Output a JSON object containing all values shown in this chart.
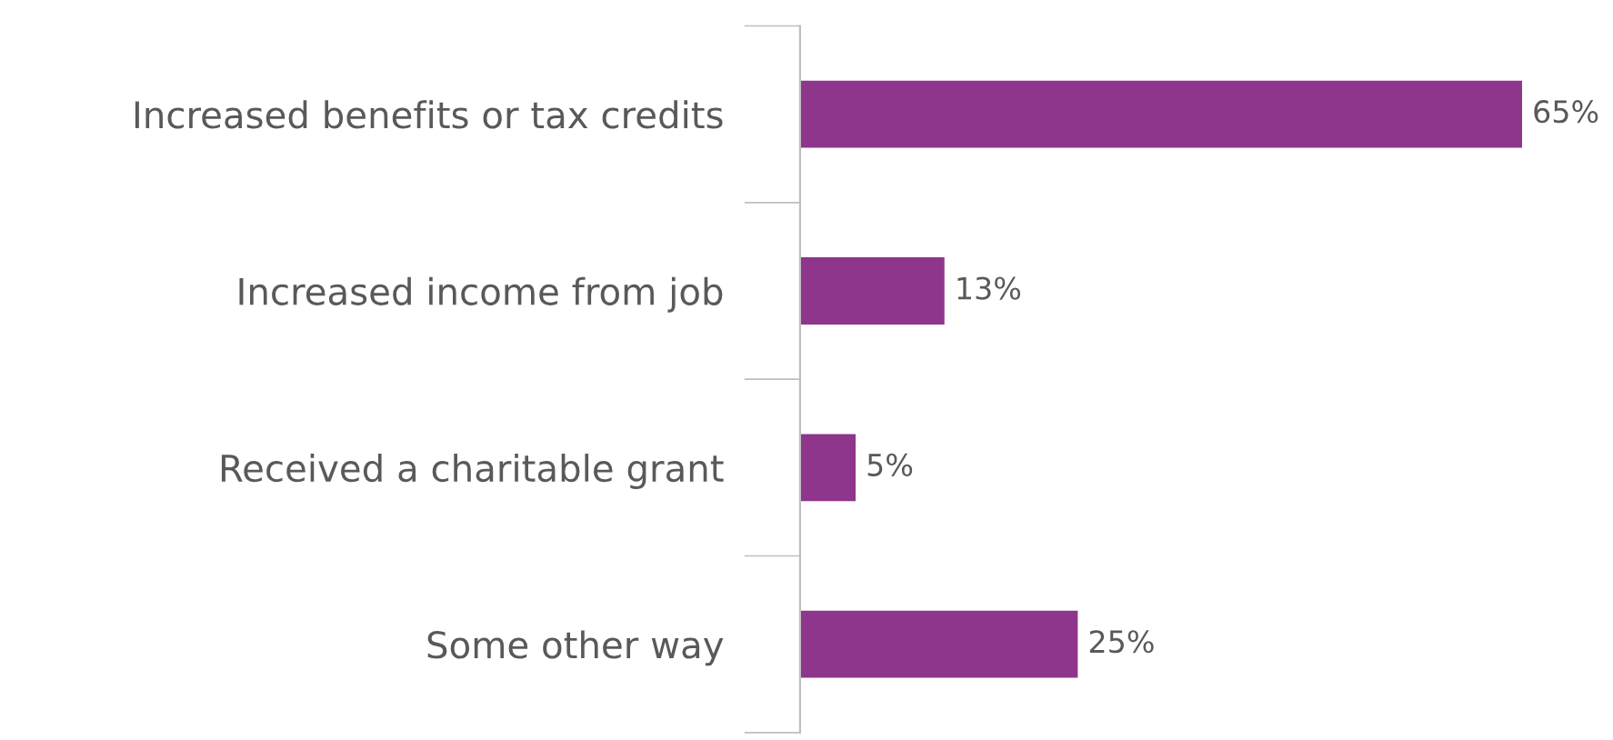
{
  "chart_data": {
    "type": "bar",
    "orientation": "horizontal",
    "categories": [
      "Increased benefits or tax credits",
      "Increased income from job",
      "Received a charitable grant",
      "Some other way"
    ],
    "values": [
      65,
      13,
      5,
      25
    ],
    "color": "#8e358c",
    "value_labels": [
      "65%",
      "13%",
      "5%",
      "25%"
    ],
    "grid": false,
    "legend": false
  }
}
